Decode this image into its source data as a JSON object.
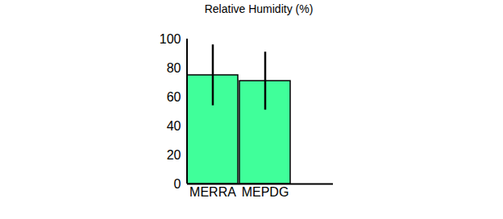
{
  "chart_data": {
    "type": "bar",
    "title": "Relative Humidity (%)",
    "categories": [
      "MERRA",
      "MEPDG"
    ],
    "values": [
      75,
      71
    ],
    "errors": [
      21,
      20
    ],
    "color": "#40ff9a",
    "ylim": [
      0,
      100
    ],
    "yticks": [
      0,
      20,
      40,
      60,
      80,
      100
    ],
    "grid": false
  }
}
